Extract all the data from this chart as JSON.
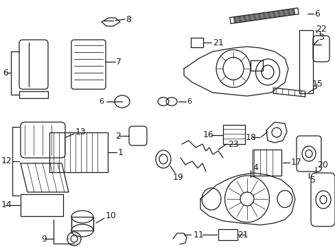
{
  "bg_color": "#ffffff",
  "line_color": "#1a1a1a",
  "figsize": [
    4.89,
    3.6
  ],
  "dpi": 100,
  "parts": {
    "label_fontsize": 9,
    "line_lw": 0.9
  }
}
